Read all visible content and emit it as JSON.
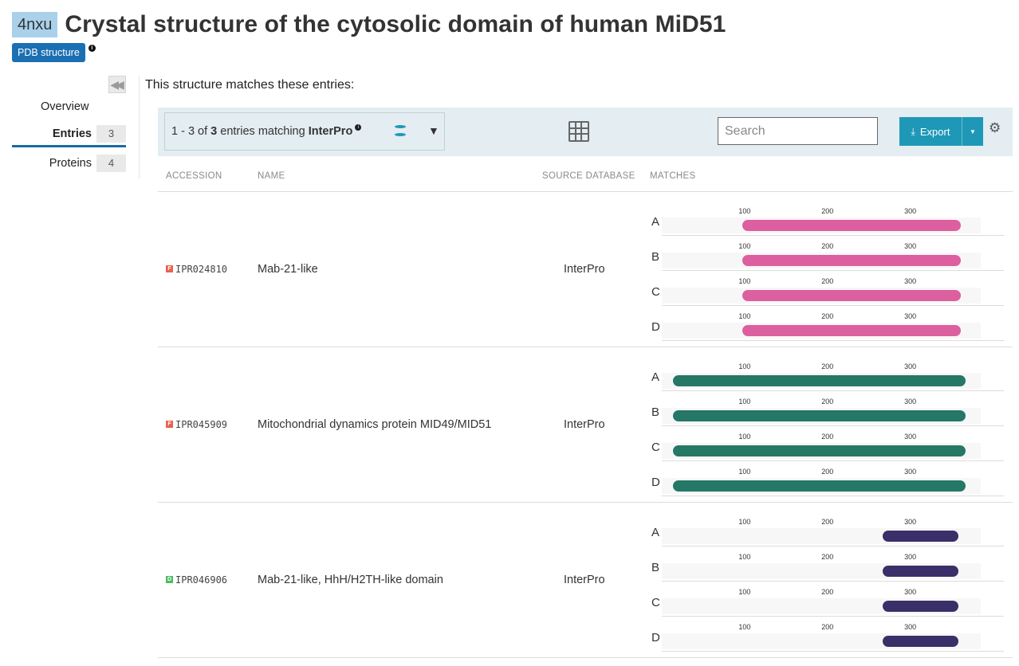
{
  "header": {
    "accession": "4nxu",
    "title": "Crystal structure of the cytosolic domain of human MiD51",
    "type_badge": "PDB structure",
    "info_glyph": "i"
  },
  "sidebar": {
    "items": [
      {
        "label": "Overview",
        "count": null
      },
      {
        "label": "Entries",
        "count": "3",
        "active": true
      },
      {
        "label": "Proteins",
        "count": "4"
      }
    ]
  },
  "intro_text": "This structure matches these entries:",
  "toolbar": {
    "range": "1 - 3 of ",
    "total": "3",
    "middle": " entries matching ",
    "db": "InterPro",
    "dropdown_arrow": "▼",
    "search_placeholder": "Search",
    "export_label": "Export",
    "export_icon": "download-icon",
    "settings_icon": "gear-icon"
  },
  "columns": [
    "ACCESSION",
    "NAME",
    "SOURCE DATABASE",
    "MATCHES"
  ],
  "tick_labels": [
    "100",
    "200",
    "300"
  ],
  "rows": [
    {
      "type_letter": "F",
      "type_color": "#e8624f",
      "accession": "IPR024810",
      "name": "Mab-21-like",
      "source": "InterPro",
      "bar_color": "#dc5f9f",
      "chains": [
        {
          "chain": "A",
          "start": 97,
          "end": 361
        },
        {
          "chain": "B",
          "start": 97,
          "end": 361
        },
        {
          "chain": "C",
          "start": 97,
          "end": 361
        },
        {
          "chain": "D",
          "start": 97,
          "end": 361
        }
      ]
    },
    {
      "type_letter": "F",
      "type_color": "#e8624f",
      "accession": "IPR045909",
      "name": "Mitochondrial dynamics protein MID49/MID51",
      "source": "InterPro",
      "bar_color": "#257766",
      "chains": [
        {
          "chain": "A",
          "start": 13,
          "end": 367
        },
        {
          "chain": "B",
          "start": 13,
          "end": 367
        },
        {
          "chain": "C",
          "start": 13,
          "end": 367
        },
        {
          "chain": "D",
          "start": 13,
          "end": 367
        }
      ]
    },
    {
      "type_letter": "D",
      "type_color": "#4dbb5f",
      "accession": "IPR046906",
      "name": "Mab-21-like, HhH/H2TH-like domain",
      "source": "InterPro",
      "bar_color": "#3a2f69",
      "chains": [
        {
          "chain": "A",
          "start": 267,
          "end": 358
        },
        {
          "chain": "B",
          "start": 267,
          "end": 358
        },
        {
          "chain": "C",
          "start": 267,
          "end": 358
        },
        {
          "chain": "D",
          "start": 267,
          "end": 358
        }
      ]
    }
  ],
  "sequence_length": 385,
  "db_icon_colors": [
    "#1f98b7",
    "#e3edf2",
    "#1f98b7"
  ]
}
